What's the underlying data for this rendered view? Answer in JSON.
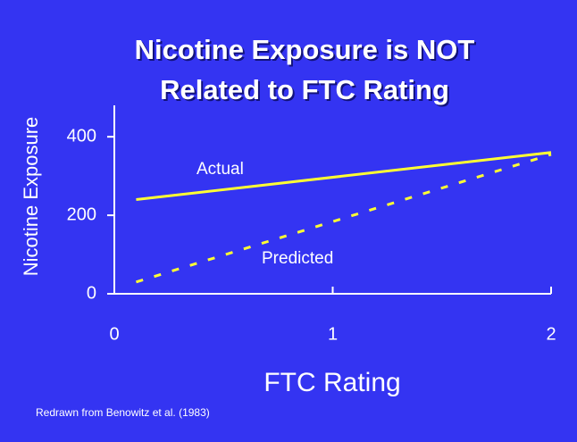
{
  "chart_data": {
    "type": "line",
    "title": [
      "Nicotine Exposure is NOT",
      "Related to FTC Rating"
    ],
    "x_label": "FTC Rating",
    "y_label": "Nicotine Exposure",
    "annotations": [
      "Actual",
      "Predicted"
    ],
    "source": "Redrawn from Benowitz et al. (1983)",
    "xlim": [
      0,
      2
    ],
    "xticks": [
      0,
      1,
      2
    ],
    "ylim": [
      0,
      480
    ],
    "yticks": [
      0,
      200,
      400
    ],
    "series": [
      {
        "name": "Actual",
        "color": "#ffff33",
        "style": "solid",
        "x": [
          0.1,
          2
        ],
        "values": [
          240,
          360
        ]
      },
      {
        "name": "Predicted",
        "color": "#ffff33",
        "style": "dashed",
        "x": [
          0.1,
          2
        ],
        "values": [
          30,
          355
        ]
      }
    ]
  }
}
